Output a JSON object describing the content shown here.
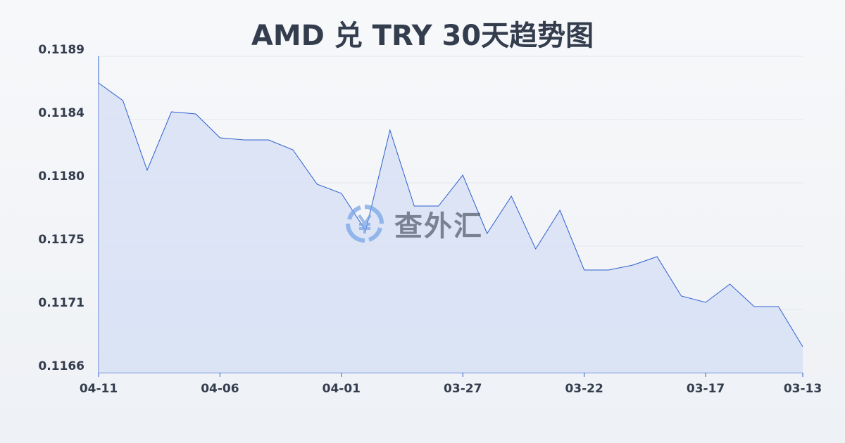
{
  "chart_data": {
    "type": "area",
    "title": "AMD 兑 TRY 30天趋势图",
    "xlabel": "",
    "ylabel": "",
    "x": [
      "04-11",
      "04-10",
      "04-09",
      "04-08",
      "04-07",
      "04-06",
      "04-05",
      "04-04",
      "04-03",
      "04-02",
      "04-01",
      "03-31",
      "03-30",
      "03-29",
      "03-28",
      "03-27",
      "03-26",
      "03-25",
      "03-24",
      "03-23",
      "03-22",
      "03-21",
      "03-20",
      "03-19",
      "03-18",
      "03-17",
      "03-16",
      "03-15",
      "03-14",
      "03-13"
    ],
    "values": [
      0.11866,
      0.118535,
      0.11804,
      0.118455,
      0.11844,
      0.11827,
      0.118255,
      0.118255,
      0.118185,
      0.11794,
      0.117875,
      0.11761,
      0.118325,
      0.117785,
      0.117785,
      0.118005,
      0.11759,
      0.117855,
      0.11748,
      0.117755,
      0.11733,
      0.11733,
      0.117365,
      0.117425,
      0.117145,
      0.1171,
      0.11723,
      0.11707,
      0.11707,
      0.116785
    ],
    "x_tick_labels": [
      "04-11",
      "04-06",
      "04-01",
      "03-27",
      "03-22",
      "03-17",
      "03-13"
    ],
    "y_tick_labels": [
      "0.1166",
      "0.1171",
      "0.1175",
      "0.1180",
      "0.1184",
      "0.1189"
    ],
    "ylim": [
      0.1166,
      0.11885
    ],
    "grid": true,
    "line_color": "#2f5fd0",
    "fill_color": "#d6e0f5"
  },
  "watermark": {
    "text": "查外汇",
    "icon": "yen-exchange-icon"
  }
}
